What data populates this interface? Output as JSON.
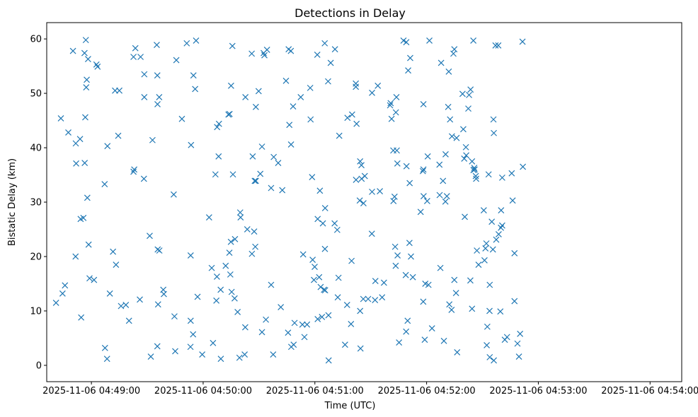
{
  "chart_data": {
    "type": "scatter",
    "title": "Detections in Delay",
    "xlabel": "Time (UTC)",
    "ylabel": "Bistatic Delay (km)",
    "marker": "x",
    "marker_color": "#1f77b4",
    "x_unit": "seconds after 2025-11-06 04:49:00",
    "xlim": [
      -24,
      317
    ],
    "ylim": [
      -3.0,
      63.0
    ],
    "x_ticks": [
      {
        "value": 0,
        "label": "2025-11-06 04:49:00"
      },
      {
        "value": 60,
        "label": "2025-11-06 04:50:00"
      },
      {
        "value": 120,
        "label": "2025-11-06 04:51:00"
      },
      {
        "value": 180,
        "label": "2025-11-06 04:52:00"
      },
      {
        "value": 240,
        "label": "2025-11-06 04:53:00"
      },
      {
        "value": 300,
        "label": "2025-11-06 04:54:00"
      }
    ],
    "y_ticks": [
      {
        "value": 0,
        "label": "0"
      },
      {
        "value": 10,
        "label": "10"
      },
      {
        "value": 20,
        "label": "20"
      },
      {
        "value": 30,
        "label": "30"
      },
      {
        "value": 40,
        "label": "40"
      },
      {
        "value": 50,
        "label": "50"
      },
      {
        "value": 60,
        "label": "60"
      }
    ],
    "points": [
      [
        -19.0,
        11.5
      ],
      [
        -16.4,
        45.4
      ],
      [
        -15.5,
        13.2
      ],
      [
        -14.2,
        14.7
      ],
      [
        -12.4,
        42.8
      ],
      [
        -9.9,
        57.8
      ],
      [
        -8.5,
        20.0
      ],
      [
        -8.4,
        40.8
      ],
      [
        -8.2,
        37.1
      ],
      [
        -6.1,
        41.6
      ],
      [
        -5.8,
        26.9
      ],
      [
        -5.5,
        8.8
      ],
      [
        -4.3,
        27.1
      ],
      [
        -3.7,
        57.4
      ],
      [
        -3.6,
        37.2
      ],
      [
        -3.3,
        45.6
      ],
      [
        -3.0,
        59.8
      ],
      [
        -2.8,
        51.1
      ],
      [
        -2.5,
        52.5
      ],
      [
        -2.2,
        30.8
      ],
      [
        -1.8,
        56.3
      ],
      [
        -1.5,
        22.2
      ],
      [
        -1.0,
        16.0
      ],
      [
        1.4,
        15.7
      ],
      [
        2.7,
        55.3
      ],
      [
        3.3,
        54.9
      ],
      [
        7.1,
        33.3
      ],
      [
        7.3,
        3.2
      ],
      [
        8.4,
        1.2
      ],
      [
        8.6,
        40.3
      ],
      [
        9.9,
        13.2
      ],
      [
        11.6,
        20.9
      ],
      [
        12.7,
        50.5
      ],
      [
        13.2,
        18.5
      ],
      [
        14.4,
        42.2
      ],
      [
        15.0,
        50.5
      ],
      [
        15.9,
        10.9
      ],
      [
        18.5,
        11.1
      ],
      [
        20.2,
        8.2
      ],
      [
        22.6,
        35.6
      ],
      [
        22.6,
        56.7
      ],
      [
        23.0,
        36.0
      ],
      [
        23.6,
        58.3
      ],
      [
        26.0,
        12.1
      ],
      [
        26.4,
        56.7
      ],
      [
        28.2,
        34.3
      ],
      [
        28.4,
        49.3
      ],
      [
        28.4,
        53.5
      ],
      [
        31.3,
        23.8
      ],
      [
        31.9,
        1.6
      ],
      [
        32.8,
        41.4
      ],
      [
        35.1,
        58.9
      ],
      [
        35.4,
        53.3
      ],
      [
        35.4,
        3.5
      ],
      [
        35.5,
        48.0
      ],
      [
        35.6,
        21.3
      ],
      [
        35.8,
        11.2
      ],
      [
        36.4,
        49.3
      ],
      [
        36.5,
        21.1
      ],
      [
        38.6,
        13.9
      ],
      [
        38.9,
        13.1
      ],
      [
        44.2,
        31.4
      ],
      [
        44.6,
        9.0
      ],
      [
        45.0,
        2.6
      ],
      [
        45.6,
        56.1
      ],
      [
        48.6,
        45.3
      ],
      [
        51.2,
        59.2
      ],
      [
        53.2,
        3.4
      ],
      [
        53.3,
        8.2
      ],
      [
        53.3,
        20.2
      ],
      [
        53.5,
        40.5
      ],
      [
        54.6,
        5.7
      ],
      [
        54.8,
        53.3
      ],
      [
        55.7,
        50.8
      ],
      [
        56.2,
        59.7
      ],
      [
        57.0,
        12.6
      ],
      [
        59.5,
        2.0
      ],
      [
        63.2,
        27.2
      ],
      [
        64.6,
        17.9
      ],
      [
        65.3,
        4.1
      ],
      [
        66.6,
        35.1
      ],
      [
        67.1,
        11.9
      ],
      [
        67.4,
        16.3
      ],
      [
        67.5,
        43.8
      ],
      [
        68.3,
        38.4
      ],
      [
        68.5,
        44.4
      ],
      [
        69.4,
        13.9
      ],
      [
        69.5,
        1.2
      ],
      [
        72.1,
        18.3
      ],
      [
        73.6,
        46.1
      ],
      [
        74.1,
        20.7
      ],
      [
        74.2,
        46.2
      ],
      [
        74.6,
        16.7
      ],
      [
        74.9,
        22.7
      ],
      [
        75.0,
        51.4
      ],
      [
        75.3,
        13.5
      ],
      [
        75.7,
        58.7
      ],
      [
        76.0,
        35.1
      ],
      [
        76.9,
        12.3
      ],
      [
        77.1,
        23.2
      ],
      [
        78.5,
        9.8
      ],
      [
        79.5,
        1.4
      ],
      [
        79.9,
        28.1
      ],
      [
        80.1,
        27.2
      ],
      [
        82.3,
        2.0
      ],
      [
        82.6,
        7.0
      ],
      [
        82.7,
        49.3
      ],
      [
        83.7,
        25.0
      ],
      [
        86.1,
        57.3
      ],
      [
        86.2,
        20.5
      ],
      [
        86.6,
        38.4
      ],
      [
        87.4,
        24.6
      ],
      [
        87.7,
        33.9
      ],
      [
        88.0,
        21.8
      ],
      [
        88.3,
        47.5
      ],
      [
        88.3,
        33.9
      ],
      [
        89.8,
        50.4
      ],
      [
        90.7,
        35.2
      ],
      [
        91.6,
        6.1
      ],
      [
        91.6,
        40.2
      ],
      [
        92.5,
        57.4
      ],
      [
        92.9,
        57.0
      ],
      [
        93.7,
        8.4
      ],
      [
        94.3,
        58.0
      ],
      [
        96.5,
        14.8
      ],
      [
        96.5,
        32.6
      ],
      [
        97.6,
        2.0
      ],
      [
        97.9,
        38.3
      ],
      [
        100.3,
        37.2
      ],
      [
        101.7,
        10.7
      ],
      [
        102.5,
        32.2
      ],
      [
        104.5,
        52.3
      ],
      [
        105.6,
        6.0
      ],
      [
        105.9,
        58.1
      ],
      [
        106.3,
        44.2
      ],
      [
        107.1,
        57.8
      ],
      [
        107.2,
        40.6
      ],
      [
        107.3,
        3.4
      ],
      [
        108.3,
        47.6
      ],
      [
        108.6,
        3.8
      ],
      [
        109.1,
        7.8
      ],
      [
        112.4,
        49.3
      ],
      [
        113.3,
        7.5
      ],
      [
        113.7,
        20.4
      ],
      [
        114.4,
        5.2
      ],
      [
        115.8,
        7.5
      ],
      [
        117.5,
        51.0
      ],
      [
        117.7,
        45.2
      ],
      [
        118.5,
        34.6
      ],
      [
        118.8,
        19.4
      ],
      [
        119.5,
        15.7
      ],
      [
        119.9,
        18.1
      ],
      [
        121.3,
        57.1
      ],
      [
        121.5,
        8.5
      ],
      [
        121.5,
        26.9
      ],
      [
        122.3,
        16.2
      ],
      [
        122.7,
        32.1
      ],
      [
        123.1,
        14.4
      ],
      [
        123.8,
        8.9
      ],
      [
        124.3,
        26.1
      ],
      [
        124.9,
        13.9
      ],
      [
        125.3,
        59.2
      ],
      [
        125.4,
        21.4
      ],
      [
        125.5,
        28.9
      ],
      [
        125.5,
        13.8
      ],
      [
        127.1,
        52.2
      ],
      [
        127.3,
        9.2
      ],
      [
        127.4,
        0.9
      ],
      [
        128.5,
        55.6
      ],
      [
        130.6,
        26.1
      ],
      [
        130.8,
        58.1
      ],
      [
        132.0,
        24.9
      ],
      [
        132.3,
        12.5
      ],
      [
        132.7,
        16.1
      ],
      [
        133.1,
        42.2
      ],
      [
        136.2,
        3.8
      ],
      [
        137.3,
        11.1
      ],
      [
        137.5,
        45.5
      ],
      [
        139.4,
        7.6
      ],
      [
        139.7,
        19.2
      ],
      [
        140.0,
        46.1
      ],
      [
        142.0,
        51.8
      ],
      [
        142.0,
        51.2
      ],
      [
        142.1,
        34.1
      ],
      [
        142.4,
        44.4
      ],
      [
        144.1,
        30.3
      ],
      [
        144.3,
        37.5
      ],
      [
        144.3,
        10.0
      ],
      [
        144.5,
        3.1
      ],
      [
        145.0,
        36.8
      ],
      [
        145.1,
        34.3
      ],
      [
        146.0,
        12.2
      ],
      [
        146.1,
        29.8
      ],
      [
        146.8,
        34.8
      ],
      [
        148.6,
        12.2
      ],
      [
        150.6,
        24.2
      ],
      [
        150.7,
        50.1
      ],
      [
        150.7,
        31.9
      ],
      [
        152.3,
        12.0
      ],
      [
        152.5,
        15.5
      ],
      [
        153.8,
        51.4
      ],
      [
        154.9,
        32.0
      ],
      [
        156.1,
        12.5
      ],
      [
        157.1,
        15.2
      ],
      [
        160.4,
        47.8
      ],
      [
        160.7,
        48.2
      ],
      [
        161.2,
        45.3
      ],
      [
        162.1,
        39.5
      ],
      [
        162.2,
        30.2
      ],
      [
        162.8,
        31.0
      ],
      [
        163.1,
        21.8
      ],
      [
        163.4,
        18.3
      ],
      [
        163.5,
        46.5
      ],
      [
        163.8,
        49.3
      ],
      [
        164.0,
        39.5
      ],
      [
        164.3,
        37.1
      ],
      [
        164.4,
        20.2
      ],
      [
        165.2,
        4.2
      ],
      [
        167.6,
        59.7
      ],
      [
        168.8,
        16.6
      ],
      [
        169.0,
        6.2
      ],
      [
        169.1,
        59.4
      ],
      [
        169.2,
        36.6
      ],
      [
        169.8,
        8.2
      ],
      [
        170.1,
        54.2
      ],
      [
        170.8,
        22.5
      ],
      [
        170.9,
        33.5
      ],
      [
        171.2,
        56.5
      ],
      [
        171.6,
        20.0
      ],
      [
        172.6,
        16.2
      ],
      [
        176.8,
        28.2
      ],
      [
        178.0,
        35.7
      ],
      [
        178.2,
        11.7
      ],
      [
        178.3,
        48.0
      ],
      [
        178.3,
        36.0
      ],
      [
        178.4,
        31.1
      ],
      [
        179.0,
        4.7
      ],
      [
        179.3,
        15.0
      ],
      [
        180.3,
        30.2
      ],
      [
        180.6,
        38.4
      ],
      [
        181.0,
        14.8
      ],
      [
        181.5,
        59.7
      ],
      [
        182.9,
        6.8
      ],
      [
        186.9,
        36.9
      ],
      [
        187.0,
        31.3
      ],
      [
        187.4,
        17.9
      ],
      [
        187.8,
        55.6
      ],
      [
        188.8,
        33.9
      ],
      [
        189.3,
        4.5
      ],
      [
        190.1,
        30.1
      ],
      [
        190.2,
        38.8
      ],
      [
        190.9,
        31.1
      ],
      [
        191.6,
        47.5
      ],
      [
        191.9,
        54.0
      ],
      [
        192.2,
        11.2
      ],
      [
        192.6,
        45.2
      ],
      [
        193.4,
        10.2
      ],
      [
        193.6,
        42.1
      ],
      [
        194.4,
        57.3
      ],
      [
        194.9,
        58.1
      ],
      [
        194.9,
        15.7
      ],
      [
        195.8,
        13.3
      ],
      [
        196.1,
        41.8
      ],
      [
        196.4,
        2.4
      ],
      [
        199.3,
        49.9
      ],
      [
        199.7,
        43.4
      ],
      [
        200.2,
        38.0
      ],
      [
        200.5,
        27.3
      ],
      [
        201.1,
        40.1
      ],
      [
        201.3,
        38.6
      ],
      [
        202.4,
        47.2
      ],
      [
        202.8,
        49.7
      ],
      [
        203.5,
        15.6
      ],
      [
        203.6,
        50.7
      ],
      [
        204.4,
        10.4
      ],
      [
        204.4,
        37.5
      ],
      [
        205.1,
        59.7
      ],
      [
        205.2,
        35.9
      ],
      [
        205.6,
        36.3
      ],
      [
        205.8,
        36.0
      ],
      [
        206.4,
        34.8
      ],
      [
        206.6,
        34.3
      ],
      [
        207.0,
        21.1
      ],
      [
        207.9,
        18.5
      ],
      [
        210.7,
        28.5
      ],
      [
        211.1,
        19.3
      ],
      [
        211.6,
        21.5
      ],
      [
        212.1,
        22.4
      ],
      [
        212.3,
        3.7
      ],
      [
        212.6,
        7.1
      ],
      [
        213.3,
        35.1
      ],
      [
        213.8,
        10.0
      ],
      [
        213.9,
        1.5
      ],
      [
        213.9,
        14.8
      ],
      [
        215.0,
        26.4
      ],
      [
        215.6,
        21.3
      ],
      [
        215.9,
        45.2
      ],
      [
        216.1,
        42.7
      ],
      [
        216.1,
        0.9
      ],
      [
        217.0,
        58.8
      ],
      [
        217.4,
        23.1
      ],
      [
        218.5,
        58.8
      ],
      [
        218.7,
        24.1
      ],
      [
        219.6,
        9.9
      ],
      [
        219.9,
        25.3
      ],
      [
        220.0,
        28.5
      ],
      [
        220.6,
        34.5
      ],
      [
        220.6,
        25.7
      ],
      [
        222.0,
        4.7
      ],
      [
        223.2,
        5.2
      ],
      [
        225.7,
        35.3
      ],
      [
        226.2,
        30.3
      ],
      [
        227.2,
        20.6
      ],
      [
        227.2,
        11.8
      ],
      [
        228.8,
        4.0
      ],
      [
        229.6,
        1.6
      ],
      [
        230.2,
        5.8
      ],
      [
        231.5,
        59.5
      ],
      [
        231.7,
        36.5
      ]
    ]
  }
}
